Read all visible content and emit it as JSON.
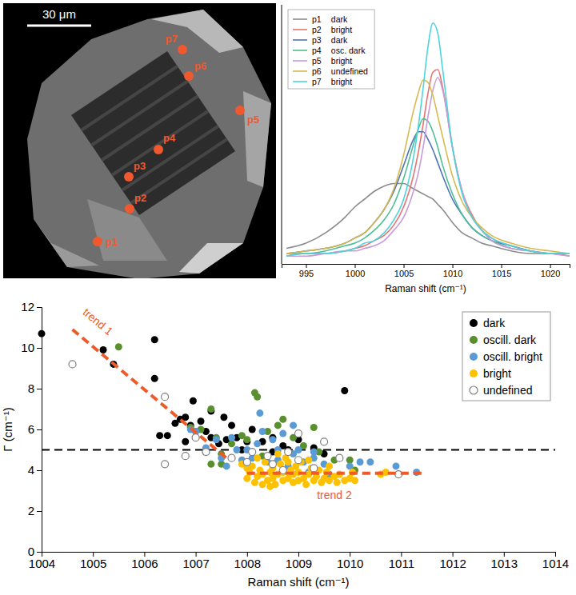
{
  "chart_data": [
    {
      "type": "image",
      "scale_bar": "30 μm",
      "points": [
        "p1",
        "p2",
        "p3",
        "p4",
        "p5",
        "p6",
        "p7"
      ],
      "color": "#f0592f"
    },
    {
      "type": "line",
      "xlabel": "Raman shift (cm⁻¹)",
      "xlim": [
        992.5,
        1022
      ],
      "xticks": [
        995,
        1000,
        1005,
        1010,
        1015,
        1020
      ],
      "ylim": [
        0,
        100
      ],
      "tick_labels": "x",
      "legend": "upper left",
      "x": [
        993,
        995,
        997,
        999,
        1000,
        1001,
        1002,
        1003,
        1004,
        1005,
        1006,
        1006.5,
        1007,
        1007.5,
        1008,
        1008.5,
        1009,
        1010,
        1011,
        1012,
        1013,
        1014,
        1016,
        1018,
        1020,
        1022
      ],
      "series": [
        {
          "name": "p1",
          "class": "dark",
          "color": "#8c8c8c",
          "values": [
            6,
            8,
            12,
            18,
            22,
            25,
            28,
            30,
            31,
            31,
            29,
            28,
            27,
            26,
            25,
            23,
            21,
            16,
            12,
            10,
            8,
            7,
            5,
            4,
            4,
            3
          ]
        },
        {
          "name": "p2",
          "class": "bright",
          "color": "#e8736e",
          "values": [
            3,
            4,
            4,
            5,
            6,
            7,
            9,
            11,
            15,
            22,
            34,
            43,
            54,
            66,
            74,
            75,
            68,
            45,
            28,
            19,
            13,
            10,
            7,
            5,
            4,
            4
          ]
        },
        {
          "name": "p3",
          "class": "dark",
          "color": "#4f74b8",
          "values": [
            4,
            5,
            6,
            8,
            10,
            12,
            16,
            21,
            28,
            38,
            48,
            51,
            51,
            48,
            44,
            39,
            34,
            25,
            19,
            14,
            11,
            9,
            7,
            5,
            4,
            4
          ]
        },
        {
          "name": "p4",
          "class": "osc. dark",
          "color": "#4cbf94",
          "values": [
            4,
            4,
            5,
            7,
            8,
            10,
            13,
            17,
            23,
            33,
            46,
            52,
            56,
            55,
            51,
            45,
            38,
            27,
            19,
            14,
            11,
            9,
            6,
            5,
            4,
            4
          ]
        },
        {
          "name": "p5",
          "class": "bright",
          "color": "#c99bdb",
          "values": [
            3,
            3,
            4,
            5,
            5,
            6,
            7,
            9,
            13,
            18,
            28,
            35,
            45,
            57,
            67,
            72,
            67,
            45,
            28,
            18,
            13,
            9,
            6,
            5,
            4,
            3
          ]
        },
        {
          "name": "p6",
          "class": "undefined",
          "color": "#d6b94f",
          "values": [
            4,
            5,
            6,
            8,
            10,
            12,
            16,
            21,
            29,
            42,
            59,
            66,
            71,
            70,
            65,
            57,
            49,
            34,
            24,
            18,
            14,
            11,
            8,
            6,
            5,
            4
          ]
        },
        {
          "name": "p7",
          "class": "bright",
          "color": "#4dd4dc",
          "values": [
            3,
            4,
            4,
            5,
            6,
            8,
            9,
            12,
            17,
            25,
            41,
            53,
            68,
            84,
            93,
            89,
            75,
            45,
            27,
            18,
            13,
            10,
            7,
            5,
            4,
            4
          ]
        }
      ]
    },
    {
      "type": "scatter",
      "xlabel": "Raman shift (cm⁻¹)",
      "ylabel": "Γ (cm⁻¹)",
      "xlim": [
        1004,
        1014
      ],
      "xticks": [
        1004,
        1005,
        1006,
        1007,
        1008,
        1009,
        1010,
        1011,
        1012,
        1013,
        1014
      ],
      "ylim": [
        0,
        12
      ],
      "yticks": [
        0,
        2,
        4,
        6,
        8,
        10,
        12
      ],
      "legend": "upper right",
      "series": [
        {
          "name": "dark",
          "color": "#000000",
          "marker": "circle",
          "x": [
            1004,
            1005.2,
            1005.4,
            1006.2,
            1006.2,
            1006.3,
            1006.45,
            1006.6,
            1006.7,
            1006.8,
            1006.8,
            1006.9,
            1006.95,
            1007,
            1007.1,
            1007.2,
            1007.3,
            1007.3,
            1007.45,
            1007.55,
            1007.6,
            1007.7,
            1007.8,
            1007.9,
            1008,
            1008.1,
            1008.3,
            1008.5,
            1008.5,
            1008.7,
            1008.8,
            1009,
            1009.3,
            1009.5,
            1009.9
          ],
          "values": [
            10.7,
            9.9,
            9.2,
            10.4,
            8.5,
            5.7,
            5.7,
            6.3,
            6.5,
            5.4,
            6.6,
            6.2,
            7.4,
            5.6,
            6.4,
            5.9,
            5.6,
            6.9,
            5.3,
            6.6,
            5.5,
            6.2,
            5.6,
            5,
            5.4,
            6,
            5.4,
            5.6,
            4.9,
            5.2,
            5,
            5.5,
            5.1,
            4.8,
            7.9
          ]
        },
        {
          "name": "oscill. dark",
          "color": "#5a8f2e",
          "marker": "circle",
          "x": [
            1005.5,
            1006.9,
            1007,
            1007.1,
            1007.3,
            1007.3,
            1007.4,
            1007.5,
            1007.5,
            1007.7,
            1007.9,
            1008,
            1008.15,
            1008.2,
            1008.3,
            1008.4,
            1008.6,
            1008.7,
            1008.9,
            1009.1,
            1009.3,
            1009.4,
            1009.7,
            1010,
            1010.1
          ],
          "values": [
            10.05,
            6.1,
            5.9,
            6,
            7,
            4.3,
            5.6,
            4.8,
            4.3,
            5.3,
            5.7,
            5.5,
            7.8,
            7.6,
            4.7,
            5.9,
            6.2,
            6.5,
            5.6,
            5.2,
            6.1,
            4.9,
            4.5,
            4.5,
            4
          ]
        },
        {
          "name": "oscill. bright",
          "color": "#5b9bd5",
          "marker": "circle",
          "x": [
            1006.9,
            1007,
            1007.2,
            1007.4,
            1007.5,
            1007.6,
            1007.7,
            1007.8,
            1007.9,
            1008,
            1008.1,
            1008.2,
            1008.25,
            1008.3,
            1008.4,
            1008.5,
            1008.6,
            1008.6,
            1008.7,
            1008.8,
            1008.9,
            1008.9,
            1009,
            1009.1,
            1009.2,
            1009.3,
            1009.3,
            1009.5,
            1009.6,
            1009.8,
            1010,
            1010.2,
            1010.4,
            1010.9,
            1011.3
          ],
          "values": [
            6,
            5.9,
            5.1,
            5.5,
            4.6,
            4.2,
            5.6,
            5,
            4.5,
            5,
            4.6,
            5.3,
            6.8,
            5.9,
            4.4,
            5.5,
            5,
            4.5,
            5.8,
            4.2,
            4.8,
            6.2,
            5,
            4.4,
            3.9,
            4.6,
            4.9,
            4.3,
            3.8,
            4.6,
            4.2,
            4.4,
            4.4,
            4.2,
            3.9
          ]
        },
        {
          "name": "bright",
          "color": "#ffc000",
          "marker": "circle",
          "x": [
            1007.9,
            1008,
            1008.05,
            1008.1,
            1008.15,
            1008.2,
            1008.25,
            1008.3,
            1008.3,
            1008.35,
            1008.4,
            1008.45,
            1008.5,
            1008.5,
            1008.55,
            1008.6,
            1008.65,
            1008.7,
            1008.7,
            1008.75,
            1008.8,
            1008.85,
            1008.9,
            1008.9,
            1008.95,
            1009,
            1009,
            1009.05,
            1009.1,
            1009.15,
            1009.2,
            1009.25,
            1009.3,
            1009.35,
            1009.4,
            1009.45,
            1009.5,
            1009.55,
            1009.6,
            1009.7,
            1009.75,
            1009.8,
            1009.9,
            1010,
            1010.05,
            1010.1,
            1010.6,
            1010.7,
            1008.6,
            1008.2,
            1009.2,
            1008,
            1008.45,
            1009.6,
            1008.8
          ],
          "values": [
            4.3,
            3.6,
            3.9,
            4.2,
            3.4,
            3.7,
            4,
            3.3,
            3.8,
            4.4,
            3.5,
            3.9,
            3.6,
            4.1,
            3.3,
            3.8,
            4.3,
            3.5,
            3.9,
            4.6,
            3.6,
            4,
            3.4,
            3.8,
            4.2,
            3.5,
            3.9,
            4.4,
            3.6,
            3.3,
            3.8,
            4.1,
            3.5,
            3.7,
            4,
            3.4,
            3.6,
            3.9,
            3.5,
            3.7,
            3.4,
            3.8,
            3.5,
            3.6,
            3.9,
            3.5,
            3.8,
            3.9,
            4.8,
            4.6,
            4.5,
            4.1,
            3.2,
            4.2,
            4.4
          ]
        },
        {
          "name": "undefined",
          "color": "#808080",
          "marker": "ring",
          "x": [
            1004.6,
            1006.4,
            1006.4,
            1006.8,
            1007,
            1007.2,
            1007.7,
            1008,
            1008.1,
            1008.4,
            1008.5,
            1008.7,
            1008.8,
            1009,
            1009,
            1009.3,
            1009.5,
            1009.8,
            1010.95
          ],
          "values": [
            9.2,
            7.6,
            4.3,
            4.7,
            5.6,
            4.9,
            4.6,
            4.4,
            4.9,
            4.7,
            4.3,
            4,
            4.9,
            5.8,
            4.5,
            4.1,
            5.4,
            4.6,
            3.8
          ]
        }
      ],
      "reference_line": {
        "value": 5,
        "color": "#000000",
        "line_style": "dashed"
      },
      "trend_lines": [
        {
          "name": "trend 1",
          "x": [
            1004.6,
            1007.6
          ],
          "values": [
            10.9,
            4.6
          ],
          "color": "#f05a28",
          "line_style": "dashed"
        },
        {
          "name": "trend 2",
          "x": [
            1008,
            1011.4
          ],
          "values": [
            3.85,
            3.85
          ],
          "color": "#f05a28",
          "line_style": "dashed"
        }
      ]
    }
  ]
}
